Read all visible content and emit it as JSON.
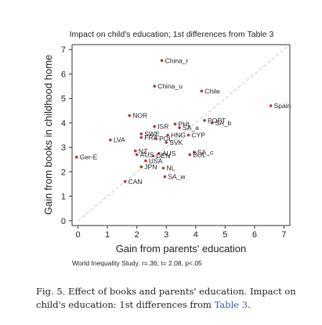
{
  "chart_data": {
    "type": "scatter",
    "title": "Impact on child's education; 1st differences from Table 3",
    "xlabel": "Gain from parents' education",
    "ylabel": "Gain from books in childhood home",
    "xlim": [
      -0.2,
      7.2
    ],
    "ylim": [
      -0.2,
      7.2
    ],
    "xticks": [
      "0",
      "1",
      "2",
      "3",
      "4",
      "5",
      "6",
      "7"
    ],
    "yticks": [
      "0",
      "1",
      "2",
      "3",
      "4",
      "5",
      "6",
      "7"
    ],
    "grid": false,
    "reference_line": "dashed diagonal y = x",
    "footnote": "World Inequality Study. r=.36; t= 2.08, p<.05",
    "colors": {
      "point": "#b03a3a",
      "label": "#b03a3a",
      "axis": "#333333",
      "diagonal": "#b8b8b8"
    },
    "points": [
      {
        "label": "China_r",
        "x": 2.85,
        "y": 6.55
      },
      {
        "label": "China_u",
        "x": 2.6,
        "y": 5.5
      },
      {
        "label": "Chile",
        "x": 4.2,
        "y": 5.3
      },
      {
        "label": "Spain",
        "x": 6.55,
        "y": 4.7
      },
      {
        "label": "NOR",
        "x": 1.75,
        "y": 4.3
      },
      {
        "label": "POPT",
        "x": 4.3,
        "y": 4.1
      },
      {
        "label": "SA_b",
        "x": 4.55,
        "y": 4.0
      },
      {
        "label": "PHL",
        "x": 3.3,
        "y": 3.95
      },
      {
        "label": "ISR",
        "x": 2.6,
        "y": 3.85
      },
      {
        "label": "SA_a",
        "x": 3.45,
        "y": 3.8
      },
      {
        "label": "SWE",
        "x": 2.15,
        "y": 3.55
      },
      {
        "label": "HNG",
        "x": 3.05,
        "y": 3.5
      },
      {
        "label": "CYP",
        "x": 3.75,
        "y": 3.5
      },
      {
        "label": "FRA",
        "x": 2.15,
        "y": 3.4
      },
      {
        "label": "POL",
        "x": 2.65,
        "y": 3.35
      },
      {
        "label": "LVA",
        "x": 1.1,
        "y": 3.3
      },
      {
        "label": "SVK",
        "x": 3.0,
        "y": 3.2
      },
      {
        "label": "NZ",
        "x": 1.95,
        "y": 2.85
      },
      {
        "label": "SA_c",
        "x": 3.95,
        "y": 2.8
      },
      {
        "label": "AUS",
        "x": 2.75,
        "y": 2.75
      },
      {
        "label": "BUL",
        "x": 3.8,
        "y": 2.7
      },
      {
        "label": "AUS2",
        "x": 2.0,
        "y": 2.7
      },
      {
        "label": "DEN",
        "x": 2.55,
        "y": 2.65
      },
      {
        "label": "Ger-E",
        "x": -0.05,
        "y": 2.6
      },
      {
        "label": "USA",
        "x": 2.3,
        "y": 2.45
      },
      {
        "label": "JPN",
        "x": 2.15,
        "y": 2.2
      },
      {
        "label": "NL",
        "x": 2.9,
        "y": 2.15
      },
      {
        "label": "SA_w",
        "x": 2.95,
        "y": 1.8
      },
      {
        "label": "CAN",
        "x": 1.6,
        "y": 1.6
      }
    ],
    "point_labels_shown": [
      "China_r",
      "China_u",
      "Chile",
      "Spain",
      "NOR",
      "POPT",
      "SA_b",
      "PHL",
      "ISR",
      "SA_a",
      "SWE",
      "HNG",
      "CYP",
      "FRA",
      "POL",
      "LVA",
      "SVK",
      "NZ",
      "SA_c",
      "AUS",
      "BUL",
      "AUS",
      "DEN",
      "Ger-E",
      "USA",
      "JPN",
      "NL",
      "SA_w",
      "CAN"
    ]
  },
  "caption": {
    "fig_label": "Fig. 5.",
    "text": " Effect of books and parents' education. Impact on child's education: 1st differences from ",
    "table_ref": "Table 3",
    "end": "."
  }
}
